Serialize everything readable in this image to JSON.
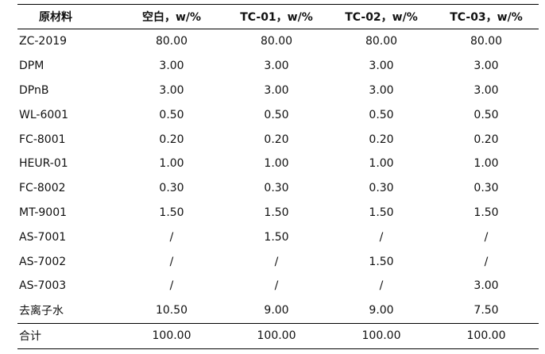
{
  "table": {
    "headers": [
      "原材料",
      "空白，w/%",
      "TC-01，w/%",
      "TC-02，w/%",
      "TC-03，w/%"
    ],
    "rows": [
      [
        "ZC-2019",
        "80.00",
        "80.00",
        "80.00",
        "80.00"
      ],
      [
        "DPM",
        "3.00",
        "3.00",
        "3.00",
        "3.00"
      ],
      [
        "DPnB",
        "3.00",
        "3.00",
        "3.00",
        "3.00"
      ],
      [
        "WL-6001",
        "0.50",
        "0.50",
        "0.50",
        "0.50"
      ],
      [
        "FC-8001",
        "0.20",
        "0.20",
        "0.20",
        "0.20"
      ],
      [
        "HEUR-01",
        "1.00",
        "1.00",
        "1.00",
        "1.00"
      ],
      [
        "FC-8002",
        "0.30",
        "0.30",
        "0.30",
        "0.30"
      ],
      [
        "MT-9001",
        "1.50",
        "1.50",
        "1.50",
        "1.50"
      ],
      [
        "AS-7001",
        "/",
        "1.50",
        "/",
        "/"
      ],
      [
        "AS-7002",
        "/",
        "/",
        "1.50",
        "/"
      ],
      [
        "AS-7003",
        "/",
        "/",
        "/",
        "3.00"
      ],
      [
        "去离子水",
        "10.50",
        "9.00",
        "9.00",
        "7.50"
      ]
    ],
    "total": [
      "合计",
      "100.00",
      "100.00",
      "100.00",
      "100.00"
    ]
  }
}
